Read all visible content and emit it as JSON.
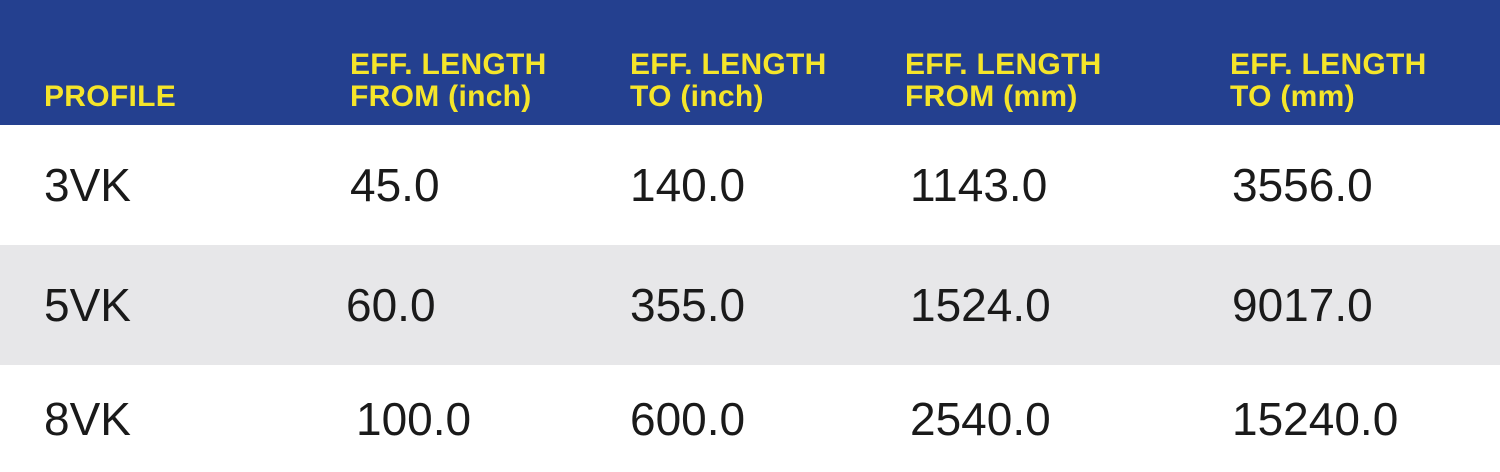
{
  "table": {
    "headers": [
      [
        "PROFILE"
      ],
      [
        "EFF. LENGTH",
        "FROM (inch)"
      ],
      [
        "EFF. LENGTH",
        "TO (inch)"
      ],
      [
        "EFF. LENGTH",
        "FROM (mm)"
      ],
      [
        "EFF. LENGTH",
        "TO (mm)"
      ]
    ],
    "rows": [
      [
        "3VK",
        "45.0",
        "140.0",
        "1143.0",
        "3556.0"
      ],
      [
        "5VK",
        "60.0",
        "355.0",
        "1524.0",
        "9017.0"
      ],
      [
        "8VK",
        "100.0",
        "600.0",
        "2540.0",
        "15240.0"
      ]
    ]
  },
  "colors": {
    "header_bg": "#24408f",
    "header_text": "#f5e52a",
    "alt_row_bg": "#e7e7e9",
    "body_text": "#1a1a1a"
  }
}
